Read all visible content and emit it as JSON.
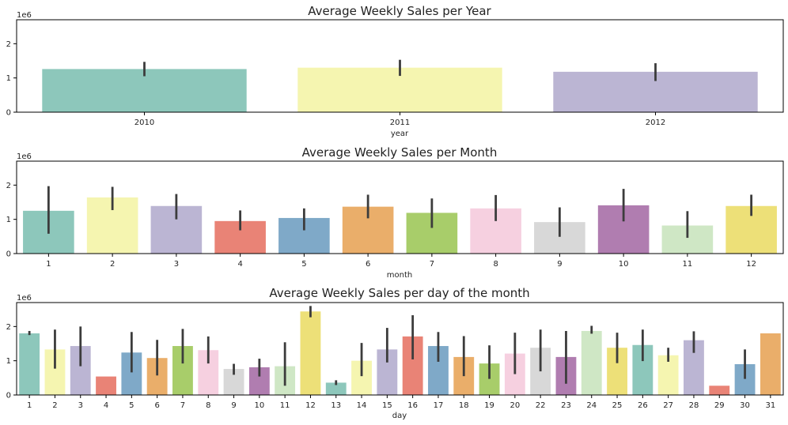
{
  "palette": [
    "#8dc7bb",
    "#f5f5b0",
    "#bbb5d3",
    "#e98376",
    "#7fa9c8",
    "#eaae6a",
    "#a8cd6a",
    "#f6d0e0",
    "#d8d8d8",
    "#b07db0",
    "#cfe7c5",
    "#ede078"
  ],
  "error_bar_color": "#3c3c3c",
  "chart_data": [
    {
      "type": "bar",
      "title": "Average Weekly Sales per Year",
      "xlabel": "year",
      "ylabel": "",
      "y_offset_label": "1e6",
      "ylim": [
        0,
        2.7
      ],
      "yticks": [
        0,
        1,
        2
      ],
      "categories": [
        "2010",
        "2011",
        "2012"
      ],
      "values": [
        1.26,
        1.3,
        1.18
      ],
      "error_bars": [
        [
          1.05,
          1.47
        ],
        [
          1.06,
          1.53
        ],
        [
          0.91,
          1.43
        ]
      ],
      "color_indices": [
        0,
        1,
        2
      ]
    },
    {
      "type": "bar",
      "title": "Average Weekly Sales per Month",
      "xlabel": "month",
      "ylabel": "",
      "y_offset_label": "1e6",
      "ylim": [
        0,
        2.7
      ],
      "yticks": [
        0,
        1,
        2
      ],
      "categories": [
        "1",
        "2",
        "3",
        "4",
        "5",
        "6",
        "7",
        "8",
        "9",
        "10",
        "11",
        "12"
      ],
      "values": [
        1.25,
        1.64,
        1.39,
        0.95,
        1.04,
        1.37,
        1.19,
        1.32,
        0.92,
        1.41,
        0.82,
        1.39
      ],
      "error_bars": [
        [
          0.58,
          1.97
        ],
        [
          1.27,
          1.95
        ],
        [
          1.0,
          1.74
        ],
        [
          0.68,
          1.26
        ],
        [
          0.68,
          1.32
        ],
        [
          1.03,
          1.72
        ],
        [
          0.75,
          1.61
        ],
        [
          0.95,
          1.71
        ],
        [
          0.49,
          1.35
        ],
        [
          0.94,
          1.89
        ],
        [
          0.46,
          1.24
        ],
        [
          1.1,
          1.72
        ]
      ],
      "color_indices": [
        0,
        1,
        2,
        3,
        4,
        5,
        6,
        7,
        8,
        9,
        10,
        11
      ]
    },
    {
      "type": "bar",
      "title": "Average Weekly Sales per day of the month",
      "xlabel": "day",
      "ylabel": "",
      "y_offset_label": "1e6",
      "ylim": [
        0,
        2.7
      ],
      "yticks": [
        0,
        1,
        2
      ],
      "categories": [
        "1",
        "2",
        "3",
        "4",
        "5",
        "6",
        "7",
        "8",
        "9",
        "10",
        "11",
        "12",
        "13",
        "14",
        "15",
        "16",
        "17",
        "18",
        "19",
        "20",
        "22",
        "23",
        "24",
        "25",
        "26",
        "27",
        "28",
        "29",
        "30",
        "31"
      ],
      "values": [
        1.8,
        1.33,
        1.43,
        0.54,
        1.24,
        1.08,
        1.43,
        1.31,
        0.76,
        0.81,
        0.84,
        2.44,
        0.36,
        1.0,
        1.33,
        1.71,
        1.43,
        1.11,
        0.92,
        1.21,
        1.38,
        1.11,
        1.87,
        1.38,
        1.46,
        1.16,
        1.6,
        0.27,
        0.9,
        1.8
      ],
      "error_bars": [
        [
          1.75,
          1.87
        ],
        [
          0.77,
          1.91
        ],
        [
          0.84,
          2.0
        ],
        null,
        [
          0.66,
          1.84
        ],
        [
          0.57,
          1.61
        ],
        [
          0.92,
          1.93
        ],
        [
          0.92,
          1.71
        ],
        [
          0.59,
          0.91
        ],
        [
          0.54,
          1.06
        ],
        [
          0.27,
          1.54
        ],
        [
          2.27,
          2.6
        ],
        [
          0.29,
          0.43
        ],
        [
          0.55,
          1.52
        ],
        [
          0.95,
          1.96
        ],
        [
          1.04,
          2.33
        ],
        [
          0.97,
          1.84
        ],
        [
          0.55,
          1.72
        ],
        [
          0.47,
          1.45
        ],
        [
          0.61,
          1.82
        ],
        [
          0.69,
          1.91
        ],
        [
          0.33,
          1.87
        ],
        [
          1.79,
          2.02
        ],
        [
          0.93,
          1.82
        ],
        [
          0.99,
          1.91
        ],
        [
          0.97,
          1.38
        ],
        [
          1.23,
          1.86
        ],
        null,
        [
          0.47,
          1.33
        ],
        null
      ],
      "color_indices": [
        0,
        1,
        2,
        3,
        4,
        5,
        6,
        7,
        8,
        9,
        10,
        11,
        0,
        1,
        2,
        3,
        4,
        5,
        6,
        7,
        8,
        9,
        10,
        11,
        0,
        1,
        2,
        3,
        4,
        5
      ]
    }
  ]
}
